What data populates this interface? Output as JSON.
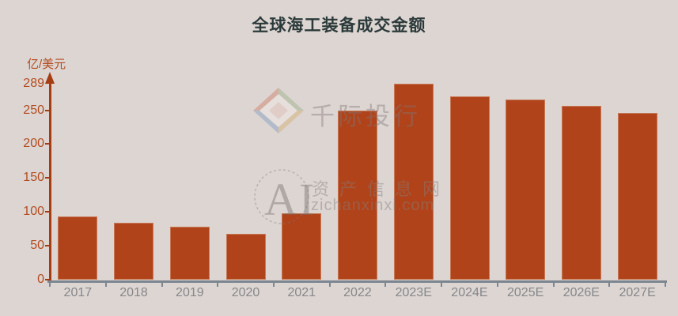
{
  "title": "全球海工装备成交金额",
  "y_axis_unit": "亿/美元",
  "colors": {
    "background": "#ddd5d2",
    "bar": "#b0431a",
    "y_axis": "#a63d12",
    "x_axis": "#7b8690",
    "y_tick_label": "#b24c20",
    "x_tick_label": "#85878a",
    "title": "#2b3a3a"
  },
  "watermarks": {
    "brand_text": "千际投行",
    "ai_text": "AI",
    "site_name": "资产信息网",
    "site_url": "zichanxinxi.com"
  },
  "chart_data": {
    "type": "bar",
    "title": "全球海工装备成交金额",
    "xlabel": "",
    "ylabel": "亿/美元",
    "categories": [
      "2017",
      "2018",
      "2019",
      "2020",
      "2021",
      "2022",
      "2023E",
      "2024E",
      "2025E",
      "2026E",
      "2027E"
    ],
    "values": [
      93,
      84,
      78,
      68,
      98,
      249,
      289,
      270,
      266,
      257,
      246
    ],
    "y_ticks": [
      0,
      50,
      100,
      150,
      200,
      250,
      289
    ],
    "ylim": [
      0,
      289
    ],
    "grid": false,
    "legend_position": "none",
    "bar_color": "#b0431a"
  }
}
